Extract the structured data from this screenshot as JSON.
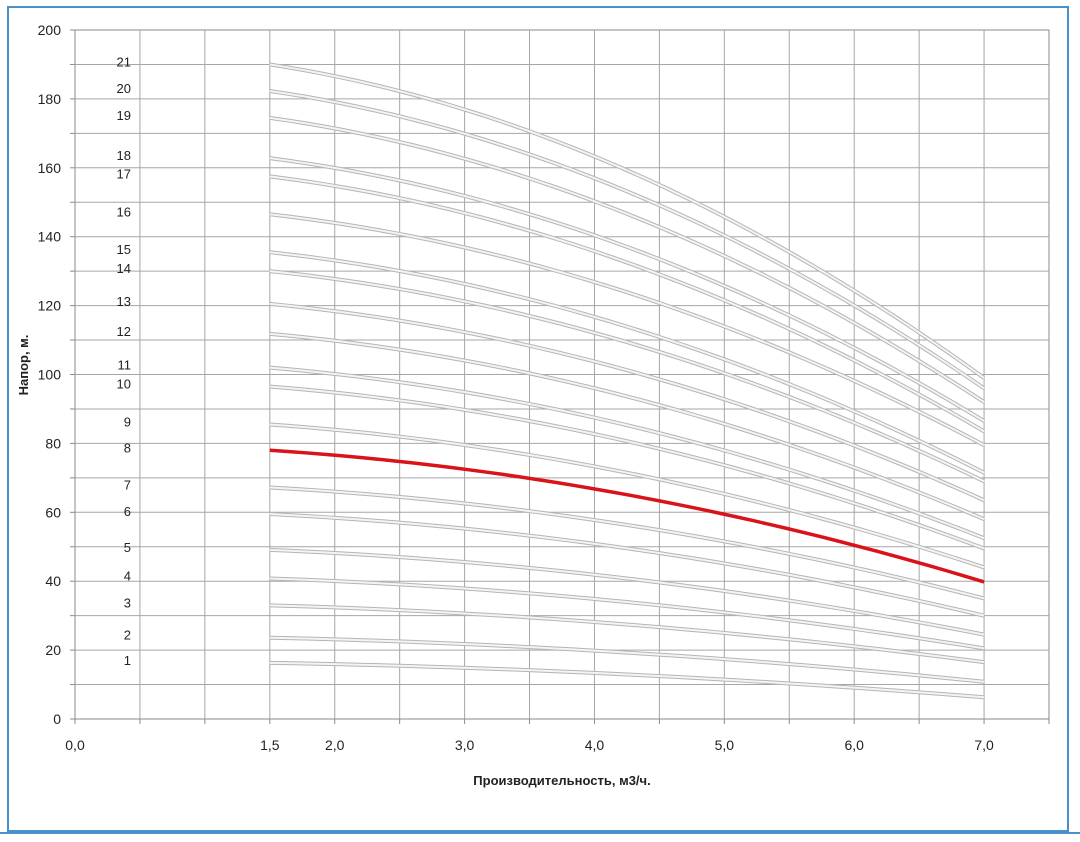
{
  "chart_data": {
    "type": "line",
    "xlabel": "Производительность, м3/ч.",
    "ylabel": "Напор, м.",
    "xlim": [
      0,
      7.5
    ],
    "ylim": [
      0,
      200
    ],
    "x_ticks": [
      "0,0",
      "1,5",
      "2,0",
      "3,0",
      "4,0",
      "5,0",
      "6,0",
      "7,0"
    ],
    "x_tick_values": [
      0,
      1.5,
      2,
      3,
      4,
      5,
      6,
      7
    ],
    "y_ticks": [
      "0",
      "20",
      "40",
      "60",
      "80",
      "100",
      "120",
      "140",
      "160",
      "180",
      "200"
    ],
    "y_tick_values": [
      0,
      20,
      40,
      60,
      80,
      100,
      120,
      140,
      160,
      180,
      200
    ],
    "grid": true,
    "highlight_color": "#d9131a",
    "curve_color": "#c8c8c8",
    "x": [
      1.5,
      7.0
    ],
    "series": [
      {
        "name": "1",
        "values": [
          16.3,
          6.3
        ]
      },
      {
        "name": "2",
        "values": [
          23.6,
          10.8
        ]
      },
      {
        "name": "3",
        "values": [
          33.0,
          16.5
        ]
      },
      {
        "name": "4",
        "values": [
          40.8,
          20.5
        ]
      },
      {
        "name": "5",
        "values": [
          49.1,
          24.5
        ]
      },
      {
        "name": "6",
        "values": [
          59.5,
          30.0
        ]
      },
      {
        "name": "7",
        "values": [
          67.2,
          35.0
        ]
      },
      {
        "name": "8",
        "values": [
          78.0,
          39.8
        ],
        "highlight": true
      },
      {
        "name": "9",
        "values": [
          85.5,
          44.0
        ]
      },
      {
        "name": "10",
        "values": [
          96.5,
          49.5
        ]
      },
      {
        "name": "11",
        "values": [
          102.0,
          52.5
        ]
      },
      {
        "name": "12",
        "values": [
          111.8,
          58.0
        ]
      },
      {
        "name": "13",
        "values": [
          120.5,
          63.5
        ]
      },
      {
        "name": "14",
        "values": [
          130.0,
          69.0
        ]
      },
      {
        "name": "15",
        "values": [
          135.5,
          71.5
        ]
      },
      {
        "name": "16",
        "values": [
          146.5,
          79.5
        ]
      },
      {
        "name": "17",
        "values": [
          157.5,
          83.5
        ]
      },
      {
        "name": "18",
        "values": [
          162.8,
          86.5
        ]
      },
      {
        "name": "19",
        "values": [
          174.5,
          92.0
        ]
      },
      {
        "name": "20",
        "values": [
          182.3,
          96.0
        ]
      },
      {
        "name": "21",
        "values": [
          190.0,
          99.0
        ]
      }
    ]
  }
}
